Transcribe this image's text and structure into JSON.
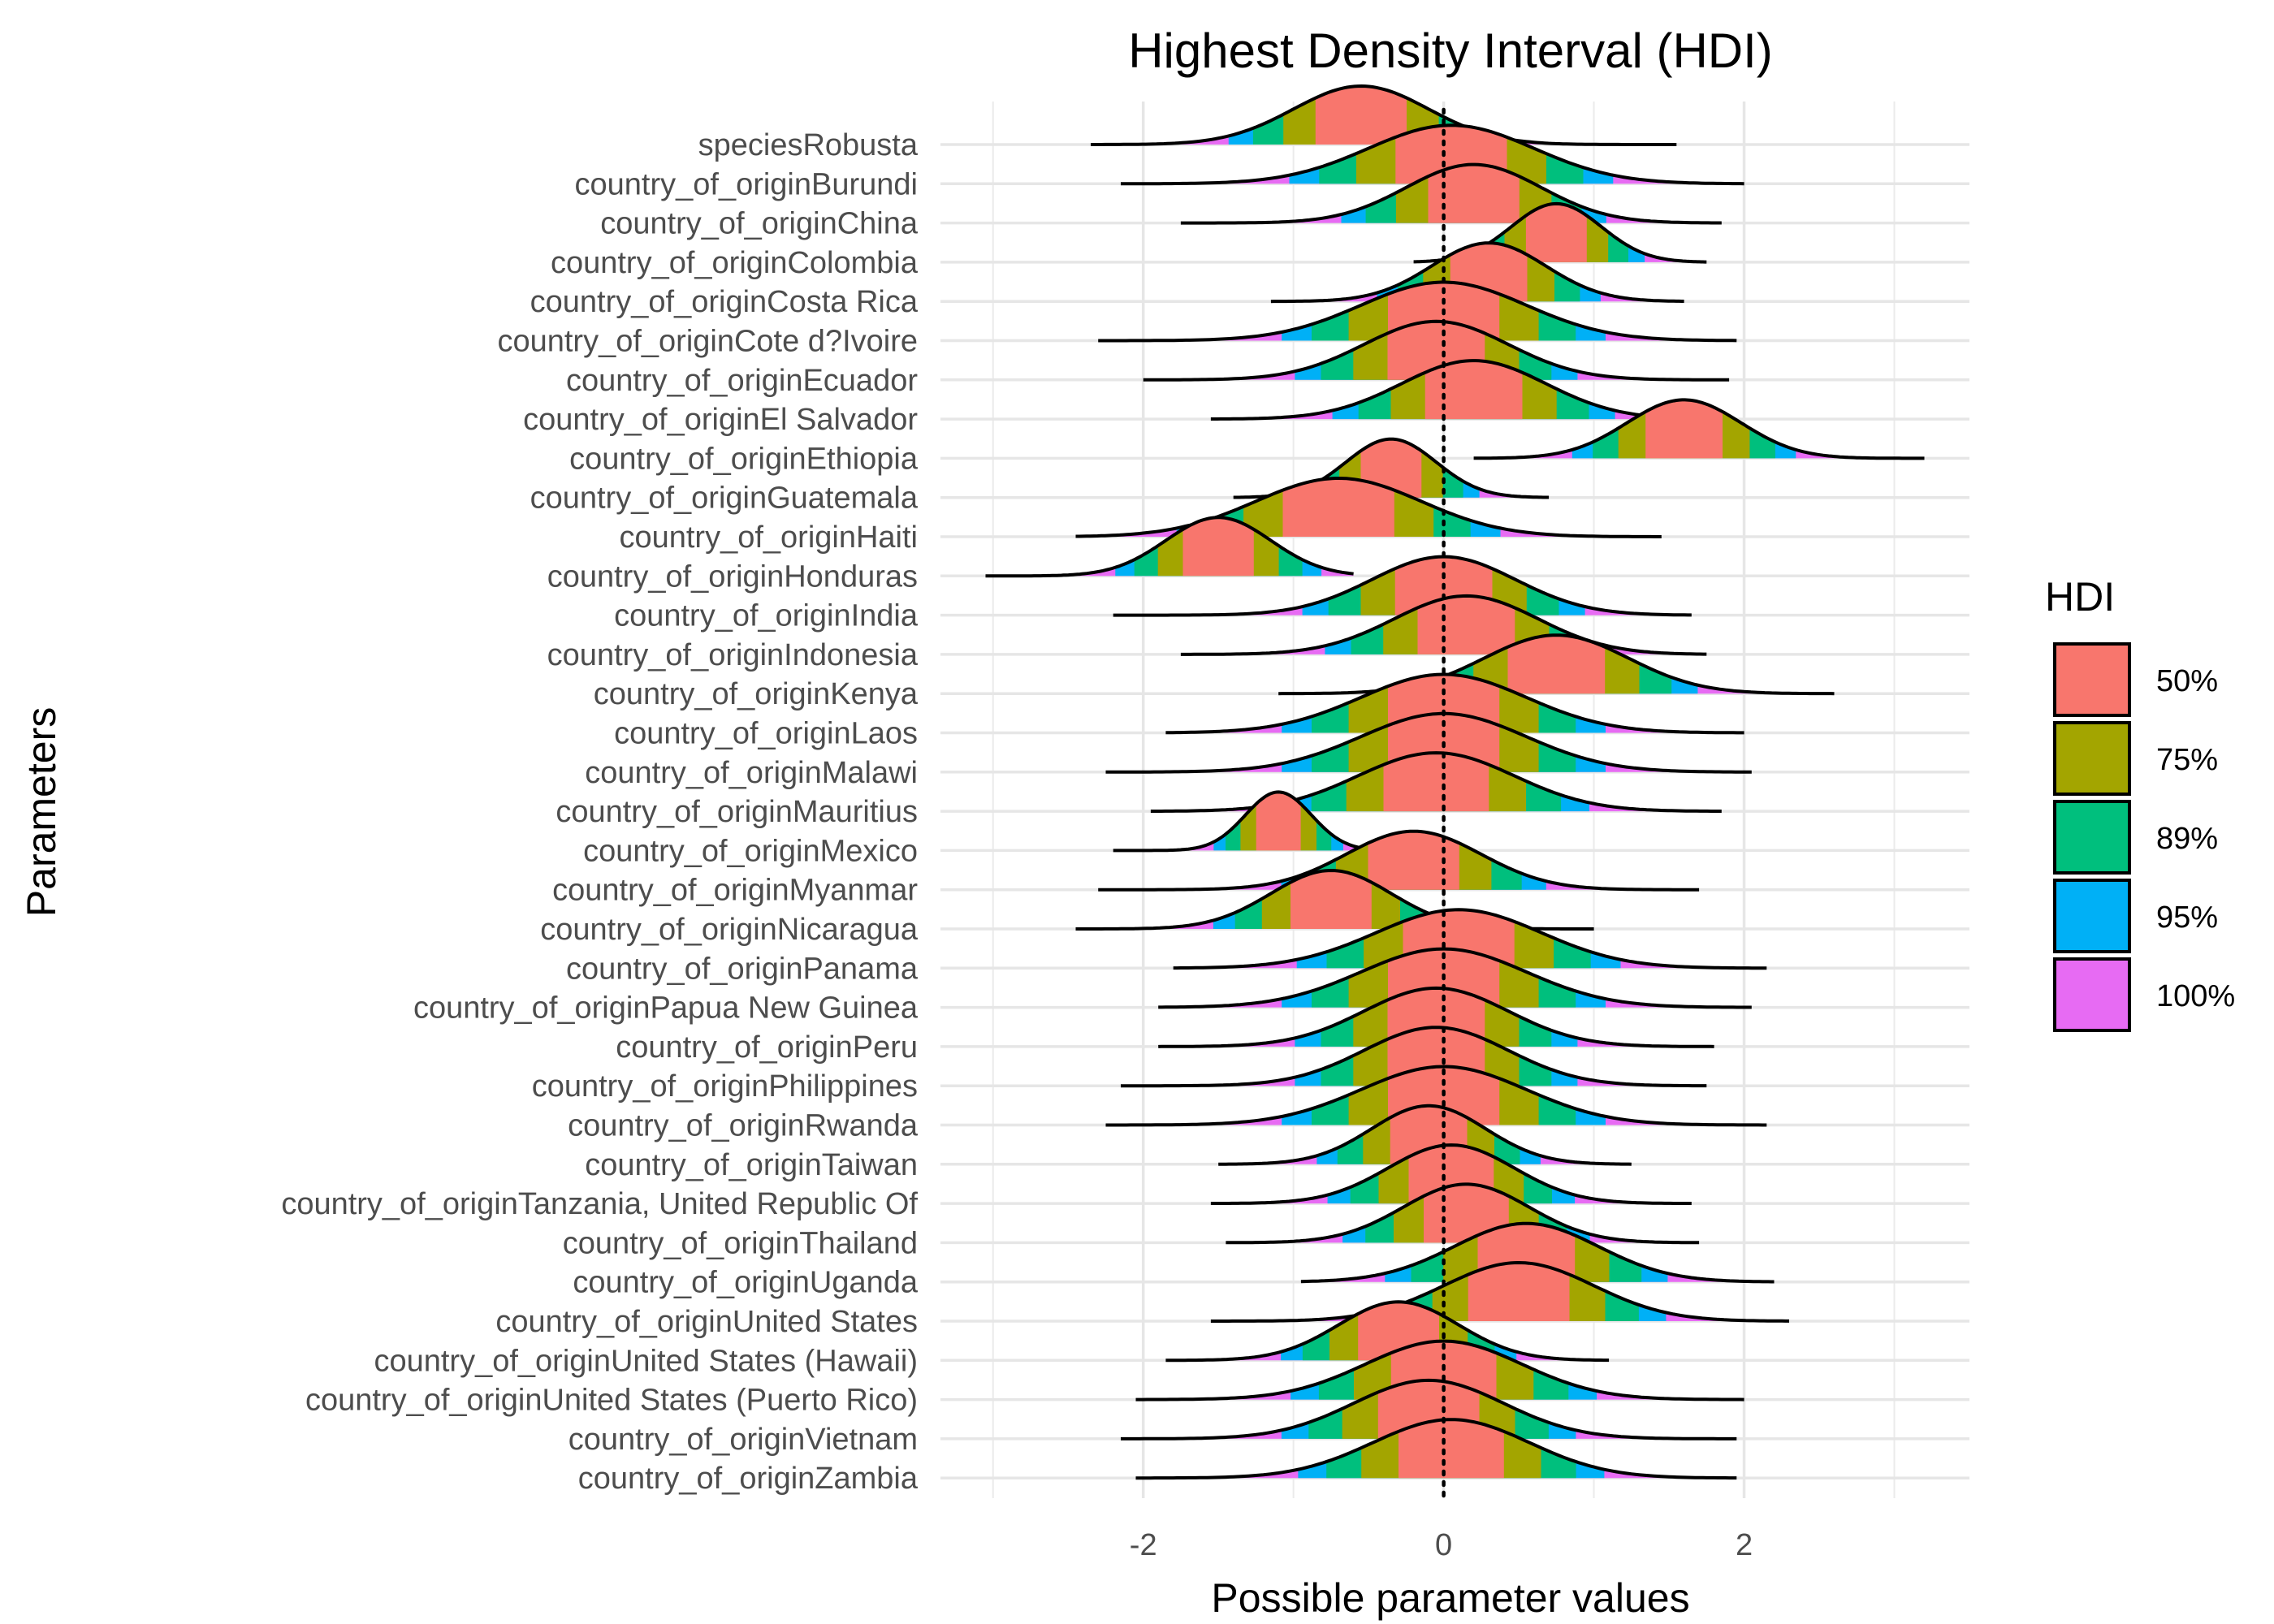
{
  "chart_data": {
    "type": "area",
    "title": "Highest Density Interval (HDI)",
    "xlabel": "Possible parameter values",
    "ylabel": "Parameters",
    "xlim": [
      -3.35,
      3.5
    ],
    "x_ticks": [
      -2,
      0,
      2
    ],
    "x_tick_labels": [
      "-2",
      "0",
      "2"
    ],
    "reference_line": 0,
    "grid": true,
    "legend": {
      "title": "HDI",
      "position": "right",
      "items": [
        {
          "label": "50%",
          "color": "#F8766D"
        },
        {
          "label": "75%",
          "color": "#A3A500"
        },
        {
          "label": "89%",
          "color": "#00BF7D"
        },
        {
          "label": "95%",
          "color": "#00B0F6"
        },
        {
          "label": "100%",
          "color": "#E76BF3"
        }
      ]
    },
    "series": [
      {
        "name": "speciesRobusta",
        "mode": -0.55,
        "sd": 0.45,
        "min": -2.35,
        "max": 1.55
      },
      {
        "name": "country_of_originBurundi",
        "mode": 0.05,
        "sd": 0.55,
        "min": -2.15,
        "max": 2.0
      },
      {
        "name": "country_of_originChina",
        "mode": 0.2,
        "sd": 0.45,
        "min": -1.75,
        "max": 1.85
      },
      {
        "name": "country_of_originColombia",
        "mode": 0.75,
        "sd": 0.3,
        "min": -0.2,
        "max": 1.75
      },
      {
        "name": "country_of_originCosta Rica",
        "mode": 0.3,
        "sd": 0.38,
        "min": -1.15,
        "max": 1.6
      },
      {
        "name": "country_of_originCote d?Ivoire",
        "mode": 0.0,
        "sd": 0.55,
        "min": -2.3,
        "max": 1.95
      },
      {
        "name": "country_of_originEcuador",
        "mode": -0.05,
        "sd": 0.48,
        "min": -2.0,
        "max": 1.9
      },
      {
        "name": "country_of_originEl Salvador",
        "mode": 0.2,
        "sd": 0.48,
        "min": -1.55,
        "max": 1.85
      },
      {
        "name": "country_of_originEthiopia",
        "mode": 1.6,
        "sd": 0.38,
        "min": 0.2,
        "max": 3.2
      },
      {
        "name": "country_of_originGuatemala",
        "mode": -0.35,
        "sd": 0.3,
        "min": -1.4,
        "max": 0.7
      },
      {
        "name": "country_of_originHaiti",
        "mode": -0.7,
        "sd": 0.55,
        "min": -2.45,
        "max": 1.45
      },
      {
        "name": "country_of_originHonduras",
        "mode": -1.5,
        "sd": 0.35,
        "min": -3.05,
        "max": -0.6
      },
      {
        "name": "country_of_originIndia",
        "mode": 0.0,
        "sd": 0.48,
        "min": -2.2,
        "max": 1.65
      },
      {
        "name": "country_of_originIndonesia",
        "mode": 0.15,
        "sd": 0.48,
        "min": -1.75,
        "max": 1.75
      },
      {
        "name": "country_of_originKenya",
        "mode": 0.75,
        "sd": 0.48,
        "min": -1.1,
        "max": 2.6
      },
      {
        "name": "country_of_originLaos",
        "mode": 0.0,
        "sd": 0.55,
        "min": -1.85,
        "max": 2.0
      },
      {
        "name": "country_of_originMalawi",
        "mode": 0.0,
        "sd": 0.55,
        "min": -2.25,
        "max": 2.05
      },
      {
        "name": "country_of_originMauritius",
        "mode": -0.05,
        "sd": 0.52,
        "min": -1.95,
        "max": 1.85
      },
      {
        "name": "country_of_originMexico",
        "mode": -1.1,
        "sd": 0.22,
        "min": -2.2,
        "max": -0.15
      },
      {
        "name": "country_of_originMyanmar",
        "mode": -0.2,
        "sd": 0.45,
        "min": -2.3,
        "max": 1.7
      },
      {
        "name": "country_of_originNicaragua",
        "mode": -0.75,
        "sd": 0.4,
        "min": -2.45,
        "max": 1.0
      },
      {
        "name": "country_of_originPanama",
        "mode": 0.1,
        "sd": 0.55,
        "min": -1.8,
        "max": 2.15
      },
      {
        "name": "country_of_originPapua New Guinea",
        "mode": 0.0,
        "sd": 0.55,
        "min": -1.9,
        "max": 2.05
      },
      {
        "name": "country_of_originPeru",
        "mode": -0.05,
        "sd": 0.48,
        "min": -1.9,
        "max": 1.8
      },
      {
        "name": "country_of_originPhilippines",
        "mode": -0.05,
        "sd": 0.48,
        "min": -2.15,
        "max": 1.75
      },
      {
        "name": "country_of_originRwanda",
        "mode": 0.0,
        "sd": 0.55,
        "min": -2.25,
        "max": 2.15
      },
      {
        "name": "country_of_originTaiwan",
        "mode": -0.1,
        "sd": 0.38,
        "min": -1.5,
        "max": 1.25
      },
      {
        "name": "country_of_originTanzania, United Republic Of",
        "mode": 0.05,
        "sd": 0.42,
        "min": -1.55,
        "max": 1.65
      },
      {
        "name": "country_of_originThailand",
        "mode": 0.15,
        "sd": 0.42,
        "min": -1.45,
        "max": 1.7
      },
      {
        "name": "country_of_originUganda",
        "mode": 0.55,
        "sd": 0.48,
        "min": -0.95,
        "max": 2.2
      },
      {
        "name": "country_of_originUnited States",
        "mode": 0.5,
        "sd": 0.5,
        "min": -1.55,
        "max": 2.3
      },
      {
        "name": "country_of_originUnited States (Hawaii)",
        "mode": -0.3,
        "sd": 0.4,
        "min": -1.85,
        "max": 1.1
      },
      {
        "name": "country_of_originUnited States (Puerto Rico)",
        "mode": 0.0,
        "sd": 0.52,
        "min": -2.05,
        "max": 2.0
      },
      {
        "name": "country_of_originVietnam",
        "mode": -0.1,
        "sd": 0.5,
        "min": -2.15,
        "max": 1.95
      },
      {
        "name": "country_of_originZambia",
        "mode": 0.05,
        "sd": 0.52,
        "min": -2.05,
        "max": 1.95
      }
    ]
  }
}
